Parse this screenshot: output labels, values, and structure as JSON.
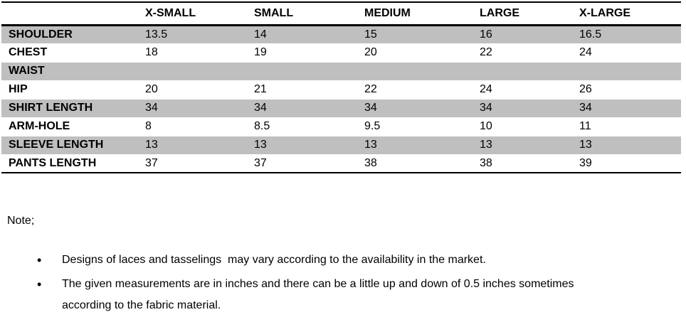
{
  "table": {
    "columns": [
      "X-SMALL",
      "SMALL",
      "MEDIUM",
      "LARGE",
      "X-LARGE"
    ],
    "rows": [
      {
        "label": "SHOULDER",
        "values": [
          "13.5",
          "14",
          "15",
          "16",
          "16.5"
        ]
      },
      {
        "label": "CHEST",
        "values": [
          "18",
          "19",
          "20",
          "22",
          "24"
        ]
      },
      {
        "label": "WAIST",
        "values": [
          "",
          "",
          "",
          "",
          ""
        ]
      },
      {
        "label": "HIP",
        "values": [
          "20",
          "21",
          "22",
          "24",
          "26"
        ]
      },
      {
        "label": "SHIRT LENGTH",
        "values": [
          "34",
          "34",
          "34",
          "34",
          "34"
        ]
      },
      {
        "label": "ARM-HOLE",
        "values": [
          "8",
          "8.5",
          "9.5",
          "10",
          "11"
        ]
      },
      {
        "label": "SLEEVE LENGTH",
        "values": [
          "13",
          "13",
          "13",
          "13",
          "13"
        ]
      },
      {
        "label": "PANTS LENGTH",
        "values": [
          "37",
          "37",
          "38",
          "38",
          "39"
        ]
      }
    ],
    "shade_color": "#bfbfbf"
  },
  "notes": {
    "heading": "Note;",
    "bullet": "•",
    "items": [
      "Designs of laces and tasselings  may vary according to the availability in the market.",
      "The given measurements are in inches and there can be a little up and down of 0.5 inches sometimes according to the fabric material."
    ]
  }
}
